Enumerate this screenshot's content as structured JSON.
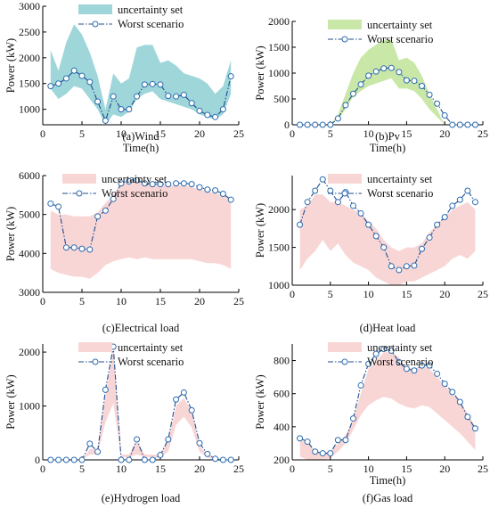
{
  "chart_data": [
    {
      "id": "wind",
      "type": "line",
      "caption": "(a)Wind",
      "xlabel": "Time(h)",
      "ylabel": "Power (kW)",
      "xlim": [
        0,
        25
      ],
      "ylim": [
        700,
        3000
      ],
      "xticks": [
        0,
        5,
        10,
        15,
        20,
        25
      ],
      "yticks": [
        1000,
        1500,
        2000,
        2500,
        3000
      ],
      "band_color": "#9fd6da",
      "legend": {
        "position": "top-right",
        "band_label": "uncertainty set",
        "line_label": "Worst scenario"
      },
      "x": [
        1,
        2,
        3,
        4,
        5,
        6,
        7,
        8,
        9,
        10,
        11,
        12,
        13,
        14,
        15,
        16,
        17,
        18,
        19,
        20,
        21,
        22,
        23,
        24
      ],
      "band_upper": [
        2150,
        1750,
        2300,
        2650,
        2450,
        2100,
        1650,
        1000,
        1700,
        1500,
        1600,
        2200,
        2250,
        2250,
        1900,
        1950,
        1850,
        1700,
        1650,
        1600,
        1500,
        1300,
        1450,
        1950
      ],
      "band_lower": [
        1400,
        1200,
        1300,
        1450,
        1400,
        1200,
        1000,
        700,
        900,
        850,
        950,
        1200,
        1300,
        1350,
        1200,
        1150,
        1100,
        1050,
        1000,
        900,
        850,
        800,
        900,
        1300
      ],
      "worst": [
        1450,
        1500,
        1600,
        1750,
        1650,
        1530,
        1150,
        780,
        1250,
        1000,
        1000,
        1250,
        1480,
        1490,
        1480,
        1260,
        1250,
        1280,
        1120,
        970,
        890,
        850,
        1000,
        1640
      ]
    },
    {
      "id": "pv",
      "type": "line",
      "caption": "(b)Pv",
      "xlabel": "Time(h)",
      "ylabel": "Power (kW)",
      "xlim": [
        0,
        25
      ],
      "ylim": [
        0,
        2000
      ],
      "xticks": [
        0,
        5,
        10,
        15,
        20,
        25
      ],
      "yticks": [
        0,
        500,
        1000,
        1500,
        2000
      ],
      "band_color": "#c9e8a8",
      "legend": {
        "position": "top-right",
        "band_label": "uncertainty set",
        "line_label": "Worst scenario"
      },
      "x": [
        1,
        2,
        3,
        4,
        5,
        6,
        7,
        8,
        9,
        10,
        11,
        12,
        13,
        14,
        15,
        16,
        17,
        18,
        19,
        20,
        21,
        22,
        23,
        24
      ],
      "band_upper": [
        0,
        0,
        0,
        0,
        0,
        200,
        600,
        1000,
        1300,
        1450,
        1550,
        1640,
        1650,
        1250,
        1300,
        1200,
        950,
        600,
        300,
        0,
        0,
        0,
        0,
        0
      ],
      "band_lower": [
        0,
        0,
        0,
        0,
        0,
        100,
        300,
        550,
        650,
        750,
        800,
        850,
        900,
        700,
        700,
        650,
        500,
        300,
        150,
        0,
        0,
        0,
        0,
        0
      ],
      "worst": [
        0,
        0,
        0,
        0,
        0,
        120,
        380,
        600,
        780,
        950,
        1030,
        1090,
        1100,
        1020,
        860,
        850,
        750,
        580,
        410,
        180,
        0,
        0,
        0,
        0
      ]
    },
    {
      "id": "electrical",
      "type": "line",
      "caption": "(c)Electrical load",
      "xlabel": "",
      "ylabel": "Power (kW)",
      "xlim": [
        0,
        25
      ],
      "ylim": [
        3000,
        6000
      ],
      "xticks": [
        0,
        5,
        10,
        15,
        20,
        25
      ],
      "yticks": [
        3000,
        4000,
        5000,
        6000
      ],
      "band_color": "#f9d6d6",
      "legend": {
        "position": "top-left",
        "band_label": "uncertainty set",
        "line_label": "Worst scenario"
      },
      "x": [
        1,
        2,
        3,
        4,
        5,
        6,
        7,
        8,
        9,
        10,
        11,
        12,
        13,
        14,
        15,
        16,
        17,
        18,
        19,
        20,
        21,
        22,
        23,
        24
      ],
      "band_upper": [
        5100,
        5000,
        5000,
        4950,
        4950,
        4950,
        5050,
        5300,
        5500,
        5800,
        5800,
        5850,
        5800,
        5750,
        5750,
        5750,
        5750,
        5750,
        5700,
        5650,
        5600,
        5550,
        5500,
        5400
      ],
      "band_lower": [
        3600,
        3500,
        3450,
        3400,
        3400,
        3350,
        3500,
        3700,
        3800,
        3850,
        3900,
        3850,
        3900,
        3850,
        3850,
        3850,
        3850,
        3850,
        3850,
        3800,
        3750,
        3750,
        3700,
        3600
      ],
      "worst": [
        5280,
        5200,
        4150,
        4150,
        4120,
        4100,
        4950,
        5100,
        5400,
        5800,
        5850,
        5880,
        5800,
        5780,
        5780,
        5780,
        5800,
        5800,
        5780,
        5700,
        5640,
        5620,
        5530,
        5380
      ]
    },
    {
      "id": "heat",
      "type": "line",
      "caption": "(d)Heat load",
      "xlabel": "",
      "ylabel": "Power (kW)",
      "xlim": [
        0,
        25
      ],
      "ylim": [
        1000,
        2450
      ],
      "xticks": [
        0,
        5,
        10,
        15,
        20,
        25
      ],
      "yticks": [
        1000,
        1500,
        2000
      ],
      "band_color": "#f9d6d6",
      "legend": {
        "position": "top-right",
        "band_label": "uncertainty set",
        "line_label": "Worst scenario"
      },
      "x": [
        1,
        2,
        3,
        4,
        5,
        6,
        7,
        8,
        9,
        10,
        11,
        12,
        13,
        14,
        15,
        16,
        17,
        18,
        19,
        20,
        21,
        22,
        23,
        24
      ],
      "band_upper": [
        2000,
        2050,
        2200,
        2200,
        2100,
        2100,
        2050,
        2000,
        1950,
        1850,
        1750,
        1600,
        1500,
        1450,
        1500,
        1500,
        1550,
        1700,
        1800,
        1900,
        2000,
        2050,
        2100,
        2000
      ],
      "band_lower": [
        1200,
        1350,
        1450,
        1600,
        1450,
        1550,
        1400,
        1300,
        1250,
        1200,
        1100,
        1050,
        1000,
        1000,
        1050,
        1050,
        1100,
        1150,
        1200,
        1250,
        1350,
        1400,
        1350,
        1450
      ],
      "worst": [
        1800,
        2100,
        2250,
        2400,
        2250,
        2100,
        2230,
        2050,
        1950,
        1800,
        1650,
        1500,
        1250,
        1200,
        1250,
        1260,
        1480,
        1630,
        1800,
        1900,
        2050,
        2130,
        2250,
        2100
      ]
    },
    {
      "id": "hydrogen",
      "type": "line",
      "caption": "(e)Hydrogen load",
      "xlabel": "",
      "ylabel": "Power (kW)",
      "xlim": [
        0,
        25
      ],
      "ylim": [
        0,
        2150
      ],
      "xticks": [
        0,
        5,
        10,
        15,
        20,
        25
      ],
      "yticks": [
        0,
        1000,
        2000
      ],
      "band_color": "#f9d6d6",
      "legend": {
        "position": "top-right",
        "band_label": "uncertainty set",
        "line_label": "Worst scenario"
      },
      "x": [
        1,
        2,
        3,
        4,
        5,
        6,
        7,
        8,
        9,
        10,
        11,
        12,
        13,
        14,
        15,
        16,
        17,
        18,
        19,
        20,
        21,
        22,
        23,
        24
      ],
      "band_upper": [
        0,
        0,
        0,
        0,
        0,
        200,
        200,
        1200,
        2050,
        100,
        100,
        350,
        100,
        100,
        100,
        350,
        1000,
        1150,
        900,
        250,
        100,
        50,
        0,
        0
      ],
      "band_lower": [
        0,
        0,
        0,
        0,
        0,
        100,
        100,
        700,
        1050,
        50,
        50,
        100,
        50,
        50,
        50,
        150,
        650,
        800,
        600,
        150,
        50,
        0,
        0,
        0
      ],
      "worst": [
        0,
        0,
        0,
        0,
        0,
        300,
        150,
        1300,
        2100,
        0,
        0,
        380,
        0,
        0,
        90,
        380,
        1120,
        1250,
        920,
        310,
        110,
        20,
        0,
        0
      ]
    },
    {
      "id": "gas",
      "type": "line",
      "caption": "(f)Gas load",
      "xlabel": "Time(h)",
      "ylabel": "Power (kW)",
      "xlim": [
        0,
        25
      ],
      "ylim": [
        200,
        900
      ],
      "xticks": [
        0,
        5,
        10,
        15,
        20,
        25
      ],
      "yticks": [
        200,
        400,
        600,
        800
      ],
      "band_color": "#f9d6d6",
      "legend": {
        "position": "top-right",
        "band_label": "uncertainty set",
        "line_label": "Worst scenario"
      },
      "x": [
        1,
        2,
        3,
        4,
        5,
        6,
        7,
        8,
        9,
        10,
        11,
        12,
        13,
        14,
        15,
        16,
        17,
        18,
        19,
        20,
        21,
        22,
        23,
        24
      ],
      "band_upper": [
        320,
        300,
        250,
        240,
        250,
        300,
        350,
        450,
        600,
        750,
        800,
        850,
        850,
        820,
        760,
        750,
        770,
        750,
        700,
        650,
        600,
        550,
        480,
        400
      ],
      "band_lower": [
        220,
        200,
        200,
        200,
        210,
        250,
        300,
        380,
        470,
        530,
        560,
        580,
        570,
        540,
        520,
        510,
        530,
        520,
        480,
        440,
        400,
        360,
        310,
        260
      ],
      "worst": [
        330,
        310,
        250,
        240,
        240,
        320,
        320,
        450,
        650,
        780,
        840,
        870,
        860,
        790,
        750,
        740,
        770,
        770,
        720,
        660,
        610,
        550,
        460,
        390
      ]
    }
  ]
}
